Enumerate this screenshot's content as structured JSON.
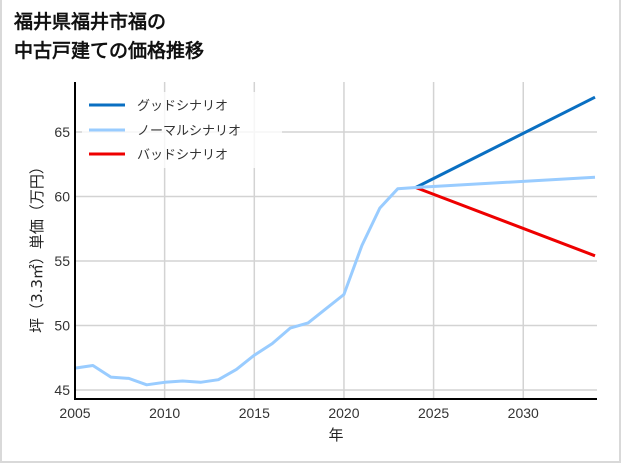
{
  "title": {
    "line1": "福井県福井市福の",
    "line2": "中古戸建ての価格推移"
  },
  "axes": {
    "xlabel": "年",
    "ylabel": "坪（3.3㎡）単価（万円）",
    "xticks": [
      "2005",
      "2010",
      "2015",
      "2020",
      "2025",
      "2030"
    ],
    "yticks": [
      "45",
      "50",
      "55",
      "60",
      "65"
    ]
  },
  "legend": {
    "good": "グッドシナリオ",
    "normal": "ノーマルシナリオ",
    "bad": "バッドシナリオ"
  },
  "colors": {
    "good": "#0a6fc2",
    "normal": "#99ccff",
    "bad": "#ee0000",
    "grid": "#d3d3d3"
  },
  "chart_data": {
    "type": "line",
    "title": "福井県福井市福の中古戸建ての価格推移",
    "xlabel": "年",
    "ylabel": "坪（3.3㎡）単価（万円）",
    "xlim": [
      2005,
      2034
    ],
    "ylim": [
      44.5,
      68
    ],
    "grid": true,
    "legend_position": "upper left",
    "series": [
      {
        "name": "ノーマルシナリオ",
        "color": "#99ccff",
        "x": [
          2005,
          2006,
          2007,
          2008,
          2009,
          2010,
          2011,
          2012,
          2013,
          2014,
          2015,
          2016,
          2017,
          2018,
          2019,
          2020,
          2021,
          2022,
          2023,
          2024,
          2034
        ],
        "values": [
          46.7,
          46.9,
          46.0,
          45.9,
          45.4,
          45.6,
          45.7,
          45.6,
          45.8,
          46.6,
          47.7,
          48.6,
          49.8,
          50.2,
          51.3,
          52.4,
          56.2,
          59.1,
          60.6,
          60.7,
          61.5
        ]
      },
      {
        "name": "グッドシナリオ",
        "color": "#0a6fc2",
        "x": [
          2024,
          2034
        ],
        "values": [
          60.7,
          67.7
        ]
      },
      {
        "name": "バッドシナリオ",
        "color": "#ee0000",
        "x": [
          2024,
          2034
        ],
        "values": [
          60.7,
          55.4
        ]
      }
    ]
  }
}
